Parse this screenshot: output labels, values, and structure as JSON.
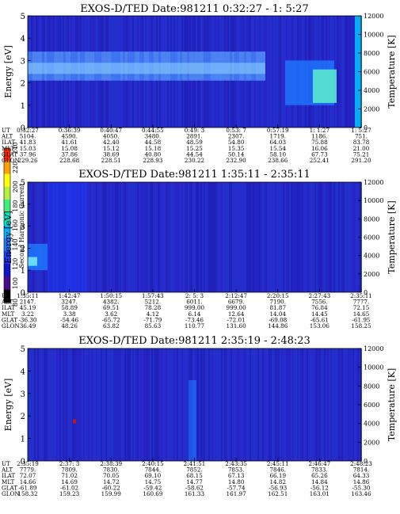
{
  "colorbar": {
    "label": "Second Harmonic Current",
    "ticks": [
      "80",
      "100",
      "120",
      "140",
      "160",
      "180",
      "200",
      "220",
      "240"
    ],
    "colors": [
      "#000000",
      "#4b0b8a",
      "#1515c8",
      "#1e3cff",
      "#1e78ff",
      "#00b4ff",
      "#00e6c8",
      "#3cf07a",
      "#b4f03c",
      "#ffff00",
      "#ffa000",
      "#ff2800"
    ]
  },
  "chart_data": [
    {
      "type": "heatmap",
      "title": "EXOS-D/TED   Date:981211   0:32:27 - 1: 5:27",
      "ylabel": "Energy [eV]",
      "y2label": "Temperature [K]",
      "ylim": [
        0,
        5
      ],
      "y2lim": [
        0,
        12000
      ],
      "yticks": [
        "0",
        "1",
        "2",
        "3",
        "4",
        "5"
      ],
      "y2ticks": [
        "0",
        "2000",
        "4000",
        "6000",
        "8000",
        "10000",
        "12000"
      ],
      "row_labels": [
        "UT",
        "ALT",
        "ILAT",
        "MLT",
        "GLAT",
        "GLON"
      ],
      "columns": [
        [
          "0:32:27",
          "5104.",
          "41.83",
          "15.03",
          "37.96",
          "229.26"
        ],
        [
          "0:36:39",
          "4590.",
          "41.61",
          "15.08",
          "37.86",
          "228.68"
        ],
        [
          "0:40:47",
          "4050.",
          "42.40",
          "15.12",
          "38.69",
          "228.51"
        ],
        [
          "0:44:55",
          "3480.",
          "44.58",
          "15.18",
          "40.80",
          "228.93"
        ],
        [
          "0:49: 3",
          "2891.",
          "48.59",
          "15.25",
          "44.54",
          "230.22"
        ],
        [
          "0:53: 7",
          "2307.",
          "54.80",
          "15.35",
          "50.14",
          "232.90"
        ],
        [
          "0:57:19",
          "1719.",
          "64.03",
          "15.54",
          "58.10",
          "238.66"
        ],
        [
          "1: 1:27",
          "1186.",
          "75.88",
          "16.06",
          "67.73",
          "252.41"
        ],
        [
          "1: 5:27",
          "751.",
          "83.78",
          "21.00",
          "75.21",
          "291.20"
        ]
      ]
    },
    {
      "type": "heatmap",
      "title": "EXOS-D/TED   Date:981211   1:35:11 - 2:35:11",
      "ylabel": "Energy [eV]",
      "y2label": "Temperature [K]",
      "ylim": [
        0,
        5
      ],
      "y2lim": [
        0,
        12000
      ],
      "yticks": [
        "0",
        "1",
        "2",
        "3",
        "4",
        "5"
      ],
      "y2ticks": [
        "0",
        "2000",
        "4000",
        "6000",
        "8000",
        "10000",
        "12000"
      ],
      "row_labels": [
        "UT",
        "ALT",
        "ILAT",
        "MLT",
        "GLAT",
        "GLON"
      ],
      "columns": [
        [
          "1:35:11",
          "2147.",
          "45.19",
          "3.22",
          "-36.30",
          "36.49"
        ],
        [
          "1:42:47",
          "3247.",
          "58.89",
          "3.38",
          "-54.46",
          "48.26"
        ],
        [
          "1:50:15",
          "4382.",
          "69.51",
          "3.62",
          "-65.72",
          "63.82"
        ],
        [
          "1:57:43",
          "5212.",
          "78.28",
          "4.12",
          "-71.79",
          "85.63"
        ],
        [
          "2: 5: 3",
          "6011.",
          "999.00",
          "6.14",
          "-73.46",
          "110.77"
        ],
        [
          "2:12:47",
          "6679.",
          "999.00",
          "12.64",
          "-72.01",
          "131.60"
        ],
        [
          "2:20:15",
          "7190.",
          "81.87",
          "14.04",
          "-69.08",
          "144.86"
        ],
        [
          "2:27:43",
          "7556.",
          "76.84",
          "14.45",
          "-65.61",
          "153.06"
        ],
        [
          "2:35:11",
          "7777.",
          "72.15",
          "14.65",
          "-61.95",
          "158.25"
        ]
      ]
    },
    {
      "type": "heatmap",
      "title": "EXOS-D/TED   Date:981211   2:35:19 - 2:48:23",
      "ylabel": "Energy [eV]",
      "y2label": "Temperature [K]",
      "ylim": [
        0,
        5
      ],
      "y2lim": [
        0,
        12000
      ],
      "yticks": [
        "0",
        "1",
        "2",
        "3",
        "4",
        "5"
      ],
      "y2ticks": [
        "0",
        "2000",
        "4000",
        "6000",
        "8000",
        "10000",
        "12000"
      ],
      "row_labels": [
        "UT",
        "ALT",
        "ILAT",
        "MLT",
        "GLAT",
        "GLON"
      ],
      "columns": [
        [
          "2:35:19",
          "7779.",
          "72.07",
          "14.66",
          "-61.89",
          "158.32"
        ],
        [
          "2:37: 3",
          "7809.",
          "71.02",
          "14.69",
          "-61.02",
          "159.23"
        ],
        [
          "2:38:39",
          "7830.",
          "70.05",
          "14.72",
          "-60.22",
          "159.99"
        ],
        [
          "2:40:15",
          "7844.",
          "69.10",
          "14.75",
          "-59.42",
          "160.69"
        ],
        [
          "2:41:51",
          "7852.",
          "68.15",
          "14.77",
          "-58.62",
          "161.33"
        ],
        [
          "2:43:35",
          "7853.",
          "67.13",
          "14.80",
          "-57.74",
          "161.97"
        ],
        [
          "2:45:11",
          "7846.",
          "66.19",
          "14.82",
          "-56.93",
          "162.51"
        ],
        [
          "2:46:47",
          "7833.",
          "65.26",
          "14.84",
          "-56.12",
          "163.01"
        ],
        [
          "2:48:23",
          "7814.",
          "64.33",
          "14.86",
          "-55.30",
          "163.46"
        ]
      ]
    }
  ]
}
